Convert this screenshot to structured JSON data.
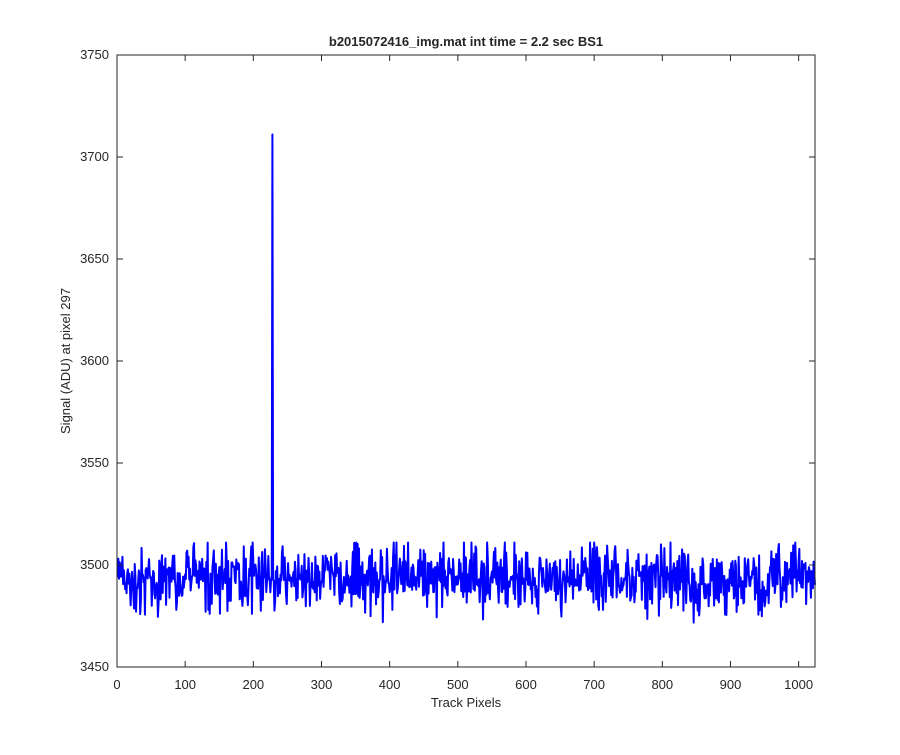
{
  "chart_data": {
    "type": "line",
    "title": "b2015072416_img.mat int time = 2.2 sec   BS1",
    "xlabel": "Track Pixels",
    "ylabel": "Signal (ADU) at pixel 297",
    "xlim": [
      0,
      1024
    ],
    "ylim": [
      3450,
      3750
    ],
    "xticks": [
      0,
      100,
      200,
      300,
      400,
      500,
      600,
      700,
      800,
      900,
      1000
    ],
    "yticks": [
      3450,
      3500,
      3550,
      3600,
      3650,
      3700,
      3750
    ],
    "grid": false,
    "legend": "none",
    "line_color": "#0000ff",
    "series": [
      {
        "x_start": 1,
        "x_step": 1,
        "n_points": 1024,
        "baseline": 3494,
        "noise_amplitude_adu": 8,
        "spike": {
          "x": 228,
          "y": 3711
        },
        "y_range": [
          3462,
          3711
        ]
      }
    ]
  }
}
